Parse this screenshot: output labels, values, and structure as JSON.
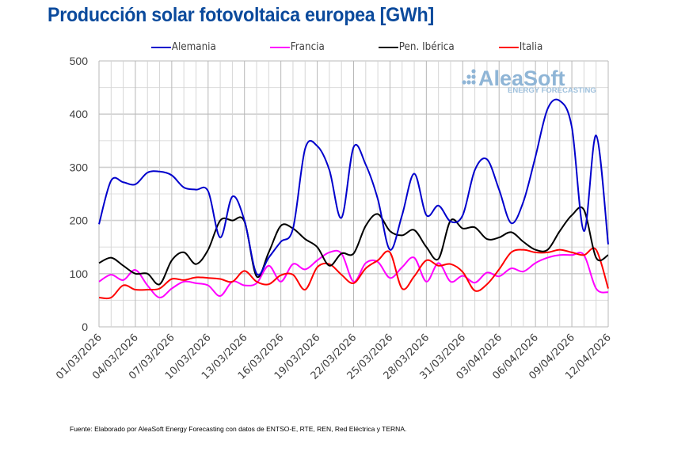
{
  "chart_data": {
    "type": "line",
    "title": "Producción solar fotovoltaica europea [GWh]",
    "xlabel": "",
    "ylabel": "",
    "ylim": [
      0,
      500
    ],
    "yticks": [
      "0",
      "100",
      "200",
      "300",
      "400",
      "500"
    ],
    "ytick_values": [
      0,
      100,
      200,
      300,
      400,
      500
    ],
    "grid": true,
    "legend_position": "top",
    "x_start": "01/03/2026",
    "x_end": "12/04/2026",
    "x": [
      "01/03/2026",
      "02/03/2026",
      "03/03/2026",
      "04/03/2026",
      "05/03/2026",
      "06/03/2026",
      "07/03/2026",
      "08/03/2026",
      "09/03/2026",
      "10/03/2026",
      "11/03/2026",
      "12/03/2026",
      "13/03/2026",
      "14/03/2026",
      "15/03/2026",
      "16/03/2026",
      "17/03/2026",
      "18/03/2026",
      "19/03/2026",
      "20/03/2026",
      "21/03/2026",
      "22/03/2026",
      "23/03/2026",
      "24/03/2026",
      "25/03/2026",
      "26/03/2026",
      "27/03/2026",
      "28/03/2026",
      "29/03/2026",
      "30/03/2026",
      "31/03/2026",
      "01/04/2026",
      "02/04/2026",
      "03/04/2026",
      "04/04/2026",
      "05/04/2026",
      "06/04/2026",
      "07/04/2026",
      "08/04/2026",
      "09/04/2026",
      "10/04/2026",
      "11/04/2026",
      "12/04/2026"
    ],
    "xtick_labels": [
      "01/03/2026",
      "04/03/2026",
      "07/03/2026",
      "10/03/2026",
      "13/03/2026",
      "16/03/2026",
      "19/03/2026",
      "22/03/2026",
      "25/03/2026",
      "28/03/2026",
      "31/03/2026",
      "03/04/2026",
      "06/04/2026",
      "09/04/2026",
      "12/04/2026"
    ],
    "series": [
      {
        "name": "Alemania",
        "color": "#0000cc",
        "values": [
          193,
          275,
          272,
          268,
          290,
          292,
          285,
          262,
          258,
          255,
          168,
          245,
          200,
          100,
          130,
          160,
          185,
          335,
          340,
          295,
          205,
          338,
          305,
          240,
          145,
          210,
          288,
          210,
          228,
          198,
          210,
          295,
          315,
          258,
          195,
          235,
          320,
          410,
          425,
          375,
          180,
          360,
          155
        ]
      },
      {
        "name": "Francia",
        "color": "#ff00ff",
        "values": [
          85,
          98,
          88,
          107,
          78,
          55,
          72,
          85,
          82,
          78,
          58,
          85,
          78,
          82,
          115,
          85,
          118,
          108,
          125,
          140,
          138,
          85,
          120,
          122,
          92,
          112,
          130,
          85,
          120,
          85,
          96,
          83,
          102,
          95,
          110,
          104,
          120,
          130,
          135,
          135,
          135,
          72,
          65
        ]
      },
      {
        "name": "Pen. Ibérica",
        "color": "#000000",
        "values": [
          120,
          130,
          115,
          100,
          100,
          80,
          125,
          140,
          118,
          145,
          200,
          200,
          198,
          95,
          140,
          190,
          185,
          165,
          150,
          115,
          138,
          138,
          190,
          212,
          180,
          172,
          182,
          150,
          128,
          200,
          185,
          187,
          165,
          168,
          178,
          160,
          145,
          145,
          180,
          210,
          220,
          130,
          135
        ]
      },
      {
        "name": "Italia",
        "color": "#ff0000",
        "values": [
          55,
          55,
          78,
          70,
          70,
          72,
          90,
          88,
          93,
          92,
          90,
          85,
          105,
          85,
          80,
          97,
          98,
          70,
          112,
          118,
          98,
          82,
          110,
          125,
          140,
          72,
          95,
          125,
          115,
          118,
          103,
          68,
          80,
          108,
          140,
          145,
          140,
          140,
          145,
          140,
          135,
          145,
          72
        ]
      }
    ],
    "annotations": {
      "watermark_main": "AleaSoft",
      "watermark_sub": "ENERGY FORECASTING",
      "source": "Fuente: Elaborado por AleaSoft Energy Forecasting con datos de ENTSO-E, RTE, REN, Red Eléctrica y TERNA."
    }
  }
}
